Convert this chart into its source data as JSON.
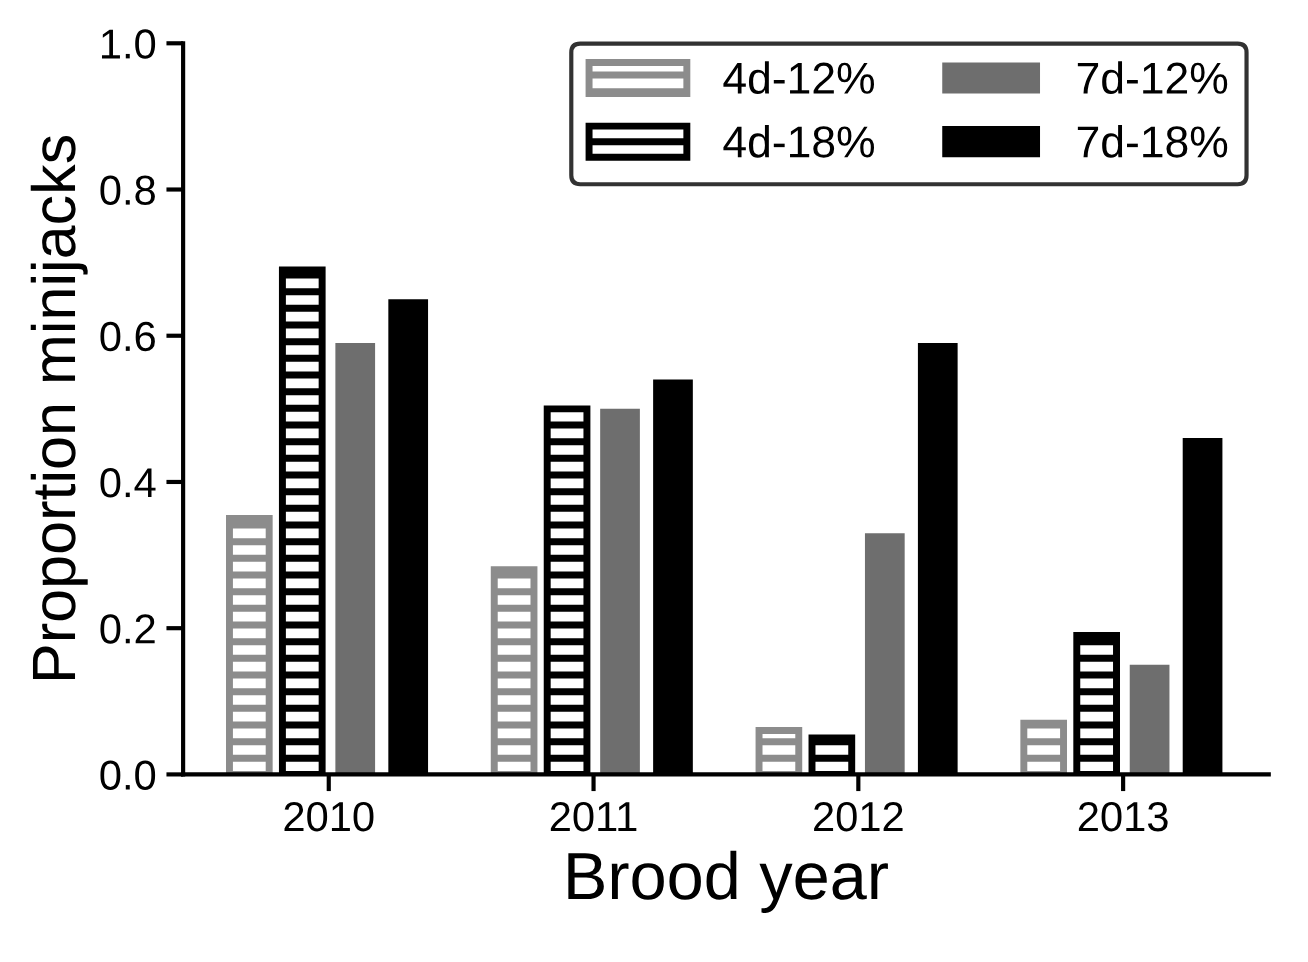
{
  "chart_data": {
    "type": "bar",
    "xlabel": "Brood year",
    "ylabel": "Proportion minijacks",
    "categories": [
      "2010",
      "2011",
      "2012",
      "2013"
    ],
    "series": [
      {
        "name": "4d-12%",
        "color": "#8c8c8c",
        "values": [
          0.35,
          0.28,
          0.06,
          0.07
        ]
      },
      {
        "name": "4d-18%",
        "color": "#000000",
        "values": [
          0.69,
          0.5,
          0.05,
          0.19
        ]
      },
      {
        "name": "7d-12%",
        "color": "#6e6e6e",
        "values": [
          0.59,
          0.5,
          0.33,
          0.15
        ]
      },
      {
        "name": "7d-18%",
        "color": "#000000",
        "values": [
          0.65,
          0.54,
          0.59,
          0.46
        ]
      }
    ],
    "ylim": [
      0,
      1.0
    ],
    "yticks": [
      {
        "value": 0,
        "label": "0.0"
      },
      {
        "value": 0.2,
        "label": "0.2"
      },
      {
        "value": 0.4,
        "label": "0.4"
      },
      {
        "value": 0.6,
        "label": "0.6"
      },
      {
        "value": 0.8,
        "label": "0.8"
      },
      {
        "value": 1.0,
        "label": "1.0"
      }
    ],
    "grid": false,
    "legend": "top right"
  }
}
